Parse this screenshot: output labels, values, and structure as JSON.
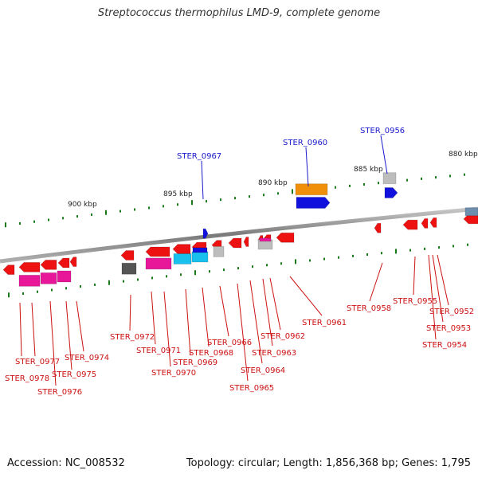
{
  "title": "Streptococcus thermophilus LMD-9, complete genome",
  "footer": {
    "accession": "Accession: NC_008532",
    "summary": "Topology: circular; Length: 1,856,368 bp; Genes: 1,795"
  },
  "colors": {
    "backbone": "#8a8a8a",
    "forward_label": "#1a1acc",
    "reverse_label": "#cc1111",
    "tick": "#1a7a1a",
    "gene_red": "#ee1111",
    "gene_blue": "#1111dd",
    "gene_orange": "#f0900a",
    "gene_pink": "#e8179a",
    "gene_cyan": "#18c0ee",
    "gene_gray": "#bdbdbd",
    "gene_dark": "#555555"
  },
  "scale_labels": [
    "900 kbp",
    "895 kbp",
    "890 kbp",
    "885 kbp",
    "880 kbp"
  ],
  "forward_genes": [
    "STER_0967",
    "STER_0960",
    "STER_0956"
  ],
  "reverse_genes": [
    "STER_0977",
    "STER_0978",
    "STER_0976",
    "STER_0975",
    "STER_0974",
    "STER_0972",
    "STER_0971",
    "STER_0970",
    "STER_0969",
    "STER_0968",
    "STER_0966",
    "STER_0965",
    "STER_0964",
    "STER_0963",
    "STER_0962",
    "STER_0961",
    "STER_0958",
    "STER_0955",
    "STER_0953",
    "STER_0954",
    "STER_0952"
  ]
}
